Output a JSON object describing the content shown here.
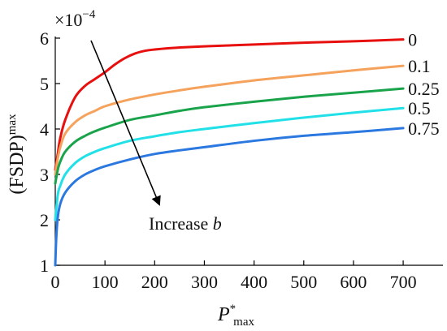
{
  "chart_data": {
    "type": "line",
    "title": "",
    "xlabel": {
      "main": "P",
      "superscript": "*",
      "subscript": "max"
    },
    "ylabel": {
      "main": "(FSDP)",
      "superscript": "max"
    },
    "scale_multiplier": {
      "prefix": "×10",
      "exponent": "−4"
    },
    "annotation": {
      "text_prefix": "Increase ",
      "text_variable": "b"
    },
    "xlim": [
      0,
      780
    ],
    "ylim": [
      1,
      6
    ],
    "xticks": [
      0,
      100,
      200,
      300,
      400,
      500,
      600,
      700
    ],
    "yticks": [
      1,
      2,
      3,
      4,
      5,
      6
    ],
    "grid": false,
    "legend": "inline-right-end",
    "series": [
      {
        "name": "0",
        "color": "#e80f0f",
        "x": [
          0,
          5,
          10,
          20,
          40,
          60,
          80,
          100,
          120,
          140,
          160,
          180,
          200,
          230,
          260,
          300,
          350,
          400,
          500,
          600,
          700
        ],
        "y": [
          3.1,
          3.45,
          3.8,
          4.2,
          4.7,
          4.95,
          5.1,
          5.25,
          5.42,
          5.56,
          5.66,
          5.72,
          5.75,
          5.78,
          5.8,
          5.82,
          5.84,
          5.86,
          5.9,
          5.93,
          5.97
        ]
      },
      {
        "name": "0.1",
        "color": "#f5a25d",
        "x": [
          0,
          5,
          10,
          20,
          40,
          60,
          80,
          100,
          150,
          200,
          250,
          300,
          400,
          500,
          600,
          700
        ],
        "y": [
          3.0,
          3.35,
          3.6,
          3.9,
          4.15,
          4.3,
          4.4,
          4.5,
          4.65,
          4.76,
          4.85,
          4.93,
          5.07,
          5.18,
          5.29,
          5.39
        ]
      },
      {
        "name": "0.25",
        "color": "#19a34a",
        "x": [
          0,
          5,
          10,
          20,
          40,
          60,
          80,
          100,
          150,
          200,
          250,
          300,
          400,
          500,
          600,
          700
        ],
        "y": [
          2.8,
          3.1,
          3.28,
          3.5,
          3.72,
          3.85,
          3.95,
          4.03,
          4.2,
          4.3,
          4.4,
          4.48,
          4.6,
          4.71,
          4.8,
          4.89
        ]
      },
      {
        "name": "0.5",
        "color": "#22e0e8",
        "x": [
          0,
          5,
          10,
          20,
          40,
          60,
          80,
          100,
          150,
          200,
          250,
          300,
          400,
          500,
          600,
          700
        ],
        "y": [
          2.0,
          2.55,
          2.75,
          3.0,
          3.25,
          3.4,
          3.5,
          3.58,
          3.74,
          3.84,
          3.93,
          4.0,
          4.13,
          4.25,
          4.36,
          4.46
        ]
      },
      {
        "name": "0.75",
        "color": "#2a78e0",
        "x": [
          0,
          2,
          5,
          10,
          20,
          40,
          60,
          80,
          100,
          150,
          200,
          250,
          300,
          400,
          500,
          600,
          700
        ],
        "y": [
          1.0,
          1.6,
          2.05,
          2.35,
          2.6,
          2.85,
          3.0,
          3.1,
          3.18,
          3.33,
          3.45,
          3.53,
          3.6,
          3.74,
          3.85,
          3.93,
          4.02
        ]
      }
    ]
  }
}
